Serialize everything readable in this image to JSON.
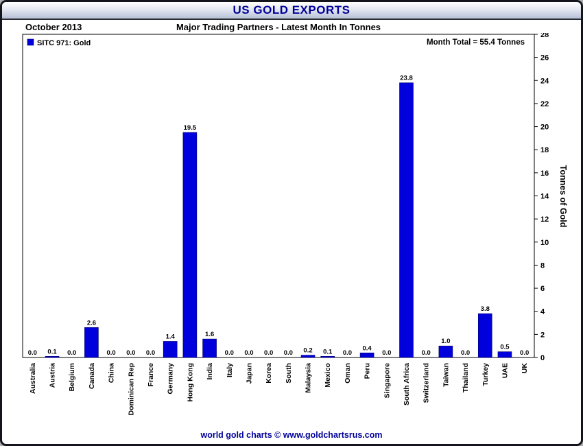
{
  "window": {
    "title": "US GOLD EXPORTS",
    "footer": "world gold charts © www.goldchartsrus.com"
  },
  "header": {
    "date": "October 2013",
    "subtitle": "Major Trading Partners - Latest Month In Tonnes"
  },
  "legend": {
    "label": "SITC 971: Gold",
    "color": "#0000dd"
  },
  "annotations": {
    "month_total": "Month Total = 55.4 Tonnes"
  },
  "chart_data": {
    "type": "bar",
    "title": "US GOLD EXPORTS",
    "subtitle": "Major Trading Partners - Latest Month In Tonnes",
    "period": "October 2013",
    "categories": [
      "Australia",
      "Austria",
      "Belgium",
      "Canada",
      "China",
      "Dominican Rep",
      "France",
      "Germany",
      "Hong Kong",
      "India",
      "Italy",
      "Japan",
      "Korea",
      "South",
      "Malaysia",
      "Mexico",
      "Oman",
      "Peru",
      "Singapore",
      "South Africa",
      "Switzerland",
      "Taiwan",
      "Thailand",
      "Turkey",
      "UAE",
      "UK"
    ],
    "values": [
      0.0,
      0.1,
      0.0,
      2.6,
      0.0,
      0.0,
      0.0,
      1.4,
      19.5,
      1.6,
      0.0,
      0.0,
      0.0,
      0.0,
      0.2,
      0.1,
      0.0,
      0.4,
      0.0,
      23.8,
      0.0,
      1.0,
      0.0,
      3.8,
      0.5,
      0.0
    ],
    "series_label": "SITC 971: Gold",
    "month_total_tonnes": 55.4,
    "xlabel": "",
    "ylabel": "Tonnes of Gold",
    "ylim": [
      0,
      28
    ],
    "ytick_step": 2,
    "bar_color": "#0000dd",
    "grid": "off",
    "legend_position": "top-left",
    "y_axis_side": "right"
  }
}
